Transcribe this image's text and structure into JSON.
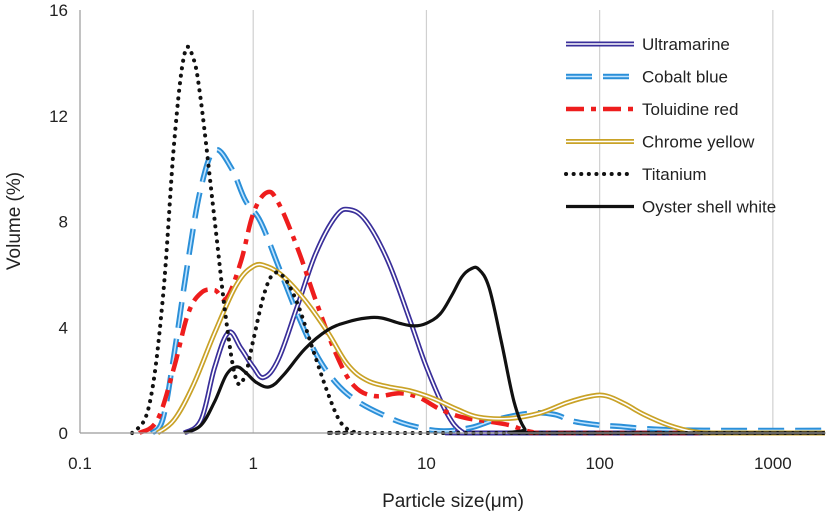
{
  "chart_data": {
    "type": "line",
    "title": "",
    "xlabel": "Particle size(μm)",
    "ylabel": "Volume (%)",
    "xscale": "log",
    "xlim": [
      0.1,
      2000
    ],
    "ylim": [
      0,
      16
    ],
    "xticks": [
      0.1,
      1,
      10,
      100,
      1000
    ],
    "xtick_labels": [
      "0.1",
      "1",
      "10",
      "100",
      "1000"
    ],
    "yticks": [
      0,
      4,
      8,
      12,
      16
    ],
    "ytick_labels": [
      "0",
      "4",
      "8",
      "12",
      "16"
    ],
    "grid": "vertical",
    "legend_position": "top-right",
    "series": [
      {
        "name": "Ultramarine",
        "color": "#3a2f9a",
        "style": "double",
        "points": [
          [
            0.4,
            0
          ],
          [
            0.5,
            0.5
          ],
          [
            0.6,
            2.5
          ],
          [
            0.72,
            3.8
          ],
          [
            0.85,
            3.2
          ],
          [
            1.0,
            2.5
          ],
          [
            1.15,
            2.1
          ],
          [
            1.4,
            2.8
          ],
          [
            1.8,
            4.8
          ],
          [
            2.3,
            6.8
          ],
          [
            3.0,
            8.2
          ],
          [
            3.6,
            8.45
          ],
          [
            4.5,
            8.0
          ],
          [
            6.0,
            6.5
          ],
          [
            8.0,
            4.3
          ],
          [
            10.0,
            2.5
          ],
          [
            13.0,
            0.8
          ],
          [
            16.0,
            0.05
          ],
          [
            20.0,
            0
          ],
          [
            2000,
            0
          ]
        ]
      },
      {
        "name": "Cobalt blue",
        "color": "#2a8fd8",
        "style": "dashed-blue",
        "points": [
          [
            0.26,
            0
          ],
          [
            0.3,
            0.5
          ],
          [
            0.35,
            3.0
          ],
          [
            0.42,
            6.5
          ],
          [
            0.5,
            9.3
          ],
          [
            0.6,
            10.7
          ],
          [
            0.75,
            10.0
          ],
          [
            0.9,
            8.8
          ],
          [
            1.1,
            8.0
          ],
          [
            1.4,
            6.3
          ],
          [
            1.8,
            4.5
          ],
          [
            2.3,
            3.0
          ],
          [
            3.0,
            1.9
          ],
          [
            4.0,
            1.2
          ],
          [
            6.0,
            0.6
          ],
          [
            8.0,
            0.3
          ],
          [
            12.0,
            0.08
          ],
          [
            18.0,
            0.2
          ],
          [
            25.0,
            0.5
          ],
          [
            40.0,
            0.75
          ],
          [
            55.0,
            0.7
          ],
          [
            70.0,
            0.45
          ],
          [
            100.0,
            0.3
          ],
          [
            130.0,
            0.25
          ],
          [
            200.0,
            0.15
          ],
          [
            400.0,
            0.1
          ],
          [
            2000,
            0.1
          ]
        ]
      },
      {
        "name": "Toluidine red",
        "color": "#ee1d1d",
        "style": "dashdot",
        "points": [
          [
            0.22,
            0
          ],
          [
            0.28,
            0.5
          ],
          [
            0.35,
            2.5
          ],
          [
            0.42,
            4.5
          ],
          [
            0.5,
            5.3
          ],
          [
            0.6,
            5.4
          ],
          [
            0.7,
            5.1
          ],
          [
            0.85,
            6.5
          ],
          [
            1.0,
            8.3
          ],
          [
            1.2,
            9.1
          ],
          [
            1.4,
            8.7
          ],
          [
            1.8,
            7.0
          ],
          [
            2.3,
            5.0
          ],
          [
            3.0,
            3.0
          ],
          [
            3.8,
            1.8
          ],
          [
            5.0,
            1.4
          ],
          [
            7.0,
            1.5
          ],
          [
            9.0,
            1.35
          ],
          [
            12.0,
            0.9
          ],
          [
            16.0,
            0.6
          ],
          [
            22.0,
            0.45
          ],
          [
            30.0,
            0.3
          ],
          [
            40.0,
            0.05
          ],
          [
            60.0,
            0
          ],
          [
            2000,
            0
          ]
        ]
      },
      {
        "name": "Chrome yellow",
        "color": "#c9a227",
        "style": "double",
        "points": [
          [
            0.28,
            0
          ],
          [
            0.35,
            0.5
          ],
          [
            0.45,
            1.8
          ],
          [
            0.6,
            3.8
          ],
          [
            0.8,
            5.6
          ],
          [
            1.0,
            6.3
          ],
          [
            1.2,
            6.3
          ],
          [
            1.5,
            5.9
          ],
          [
            2.0,
            5.0
          ],
          [
            2.7,
            3.8
          ],
          [
            3.5,
            2.6
          ],
          [
            4.5,
            2.0
          ],
          [
            6.0,
            1.75
          ],
          [
            8.0,
            1.6
          ],
          [
            11.0,
            1.3
          ],
          [
            15.0,
            0.9
          ],
          [
            20.0,
            0.6
          ],
          [
            30.0,
            0.55
          ],
          [
            45.0,
            0.75
          ],
          [
            65.0,
            1.15
          ],
          [
            90.0,
            1.4
          ],
          [
            110.0,
            1.4
          ],
          [
            140.0,
            1.1
          ],
          [
            180.0,
            0.7
          ],
          [
            250.0,
            0.3
          ],
          [
            350.0,
            0.05
          ],
          [
            500.0,
            0
          ],
          [
            2000,
            0
          ]
        ]
      },
      {
        "name": "Titanium",
        "color": "#111111",
        "style": "dotted",
        "points": [
          [
            0.2,
            0
          ],
          [
            0.25,
            1.0
          ],
          [
            0.3,
            5.0
          ],
          [
            0.35,
            11.0
          ],
          [
            0.4,
            14.3
          ],
          [
            0.45,
            14.2
          ],
          [
            0.5,
            12.5
          ],
          [
            0.6,
            8.0
          ],
          [
            0.7,
            4.2
          ],
          [
            0.8,
            2.0
          ],
          [
            0.9,
            2.2
          ],
          [
            1.0,
            3.5
          ],
          [
            1.15,
            5.2
          ],
          [
            1.3,
            6.0
          ],
          [
            1.5,
            5.9
          ],
          [
            1.8,
            4.9
          ],
          [
            2.2,
            3.2
          ],
          [
            2.7,
            1.5
          ],
          [
            3.2,
            0.4
          ],
          [
            3.8,
            0.05
          ],
          [
            4.5,
            0
          ],
          [
            2000,
            0
          ]
        ]
      },
      {
        "name": "Oyster shell white",
        "color": "#111111",
        "style": "solid",
        "points": [
          [
            0.4,
            0
          ],
          [
            0.5,
            0.3
          ],
          [
            0.6,
            1.2
          ],
          [
            0.7,
            2.2
          ],
          [
            0.8,
            2.5
          ],
          [
            0.9,
            2.3
          ],
          [
            1.05,
            1.9
          ],
          [
            1.25,
            1.75
          ],
          [
            1.5,
            2.2
          ],
          [
            2.0,
            3.2
          ],
          [
            2.7,
            3.9
          ],
          [
            3.5,
            4.2
          ],
          [
            4.5,
            4.35
          ],
          [
            5.5,
            4.35
          ],
          [
            7.0,
            4.15
          ],
          [
            8.5,
            4.05
          ],
          [
            10.0,
            4.15
          ],
          [
            12.0,
            4.5
          ],
          [
            14.0,
            5.2
          ],
          [
            16.0,
            5.9
          ],
          [
            18.0,
            6.2
          ],
          [
            20.0,
            6.2
          ],
          [
            23.0,
            5.5
          ],
          [
            27.0,
            3.5
          ],
          [
            32.0,
            1.2
          ],
          [
            37.0,
            0.15
          ],
          [
            42.0,
            0
          ],
          [
            2000,
            0
          ]
        ]
      }
    ]
  }
}
